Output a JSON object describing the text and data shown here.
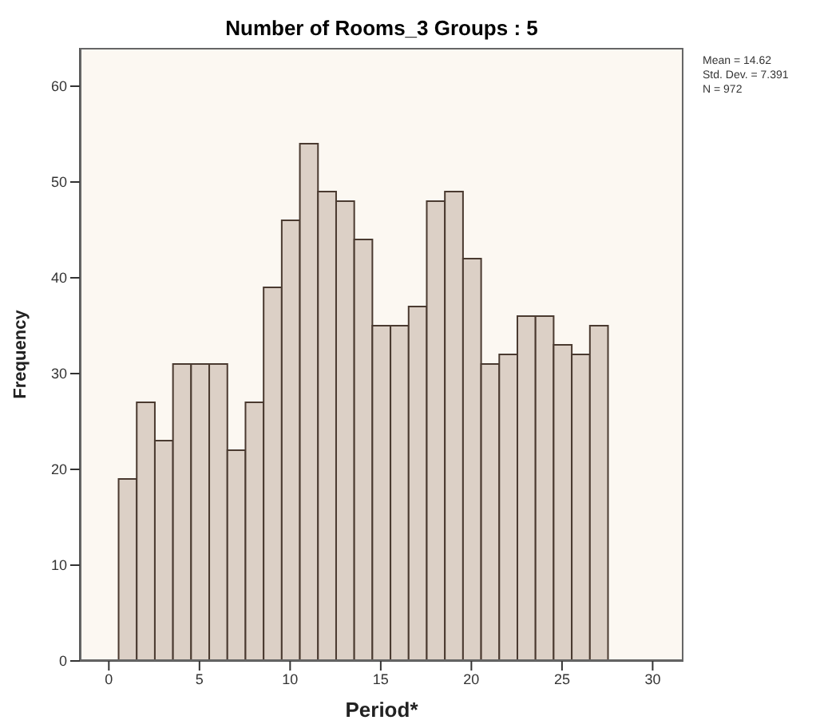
{
  "chart_data": {
    "type": "histogram",
    "title": "Number of Rooms_3 Groups : 5",
    "xlabel": "Period*",
    "ylabel": "Frequency",
    "bins": [
      0.5,
      1.5,
      2.5,
      3.5,
      4.5,
      5.5,
      6.5,
      7.5,
      8.5,
      9.5,
      10.5,
      11.5,
      12.5,
      13.5,
      14.5,
      15.5,
      16.5,
      17.5,
      18.5,
      19.5,
      20.5,
      21.5,
      22.5,
      23.5,
      24.5,
      25.5,
      26.5,
      27.5
    ],
    "values": [
      19,
      27,
      23,
      31,
      31,
      31,
      22,
      27,
      39,
      46,
      54,
      49,
      48,
      44,
      35,
      35,
      37,
      48,
      49,
      42,
      31,
      32,
      36,
      36,
      33,
      32,
      35
    ],
    "color": "#dcd0c6",
    "xlim": [
      -1.6,
      31.7
    ],
    "xticks": [
      0,
      5,
      10,
      15,
      20,
      25,
      30
    ],
    "ylim": [
      0,
      64
    ],
    "yticks": [
      0,
      10,
      20,
      30,
      40,
      50,
      60
    ],
    "grid": false,
    "annotations": [
      "Mean = 14.62",
      "Std. Dev. = 7.391",
      "N = 972"
    ]
  }
}
